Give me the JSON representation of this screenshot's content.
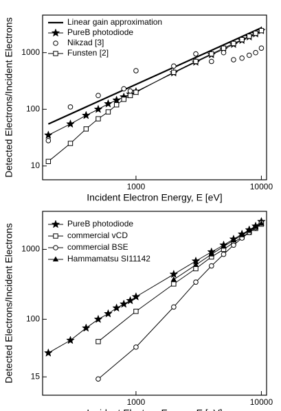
{
  "chart_data": [
    {
      "type": "line",
      "xlabel": "Incident Electron Energy, E [eV]",
      "ylabel": "Detected Electrons/Incident Electrons",
      "log_x": true,
      "log_y": true,
      "xlim": [
        180,
        11000
      ],
      "ylim": [
        5.7,
        4600
      ],
      "xticks": [
        1000,
        10000
      ],
      "yticks": [
        10,
        100,
        1000
      ],
      "legend": "upper left",
      "series": [
        {
          "name": "Linear gain approximation",
          "color": "#000000",
          "marker": "none",
          "line": true,
          "x": [
            200,
            10000
          ],
          "values": [
            55,
            2750
          ]
        },
        {
          "name": "PureB photodiode",
          "color": "#000000",
          "marker": "star",
          "line": true,
          "x": [
            200,
            300,
            400,
            500,
            600,
            700,
            800,
            900,
            1000,
            2000,
            3000,
            4000,
            5000,
            6000,
            7000,
            8000,
            9000,
            10000
          ],
          "values": [
            35,
            55,
            78,
            100,
            125,
            145,
            165,
            185,
            205,
            440,
            680,
            920,
            1150,
            1400,
            1650,
            1900,
            2150,
            2450
          ]
        },
        {
          "name": "Nikzad [3]",
          "color": "#000000",
          "marker": "circle",
          "line": false,
          "x": [
            200,
            300,
            500,
            800,
            900,
            1000,
            2000,
            3000,
            4000,
            5000,
            6000,
            7000,
            8000,
            9000,
            10000
          ],
          "values": [
            28,
            110,
            175,
            230,
            210,
            480,
            580,
            950,
            700,
            1000,
            750,
            800,
            900,
            1000,
            1200
          ]
        },
        {
          "name": "Funsten [2]",
          "color": "#000000",
          "marker": "square",
          "line": true,
          "x": [
            200,
            300,
            400,
            500,
            600,
            700,
            800,
            900,
            1000,
            2000,
            3000,
            4000,
            5000,
            6000,
            7000,
            8000,
            9000,
            10000
          ],
          "values": [
            12,
            25,
            45,
            68,
            90,
            120,
            150,
            175,
            200,
            450,
            700,
            950,
            1200,
            1450,
            1700,
            1950,
            2200,
            2450
          ]
        }
      ]
    },
    {
      "type": "line",
      "xlabel": "Incident Electron Energy, E [eV]",
      "ylabel": "Detected Electrons/Incident Electrons",
      "log_x": true,
      "log_y": true,
      "xlim": [
        180,
        11000
      ],
      "ylim": [
        8.2,
        3500
      ],
      "xticks": [
        1000,
        10000
      ],
      "yticks": [
        15,
        100,
        1000
      ],
      "legend": "upper left",
      "series": [
        {
          "name": "PureB photodiode",
          "color": "#000000",
          "marker": "star",
          "line": true,
          "x": [
            200,
            300,
            400,
            500,
            600,
            700,
            800,
            900,
            1000,
            2000,
            3000,
            4000,
            5000,
            6000,
            7000,
            8000,
            9000,
            10000
          ],
          "values": [
            33,
            50,
            75,
            100,
            120,
            145,
            165,
            185,
            210,
            440,
            680,
            920,
            1150,
            1400,
            1650,
            1900,
            2150,
            2500
          ]
        },
        {
          "name": "commercial vCD",
          "color": "#000000",
          "marker": "square",
          "line": true,
          "x": [
            500,
            1000,
            2000,
            3000,
            4000,
            5000,
            6000,
            7000,
            8000,
            9000,
            10000
          ],
          "values": [
            48,
            130,
            320,
            530,
            780,
            1000,
            1250,
            1500,
            1750,
            2000,
            2300
          ]
        },
        {
          "name": "commercial BSE",
          "color": "#000000",
          "marker": "circle",
          "line": true,
          "x": [
            500,
            1000,
            2000,
            3000,
            4000,
            5000,
            6000,
            7000,
            8000,
            9000,
            10000
          ],
          "values": [
            14,
            40,
            150,
            340,
            580,
            850,
            1150,
            1450,
            1750,
            2050,
            2400
          ]
        },
        {
          "name": "Hammamatsu SI11142",
          "color": "#000000",
          "marker": "triangle",
          "line": true,
          "x": [
            2000,
            3000,
            4000,
            5000,
            6000,
            7000,
            8000,
            9000,
            10000
          ],
          "values": [
            370,
            600,
            850,
            1100,
            1350,
            1600,
            1850,
            2100,
            2350
          ]
        }
      ]
    }
  ]
}
